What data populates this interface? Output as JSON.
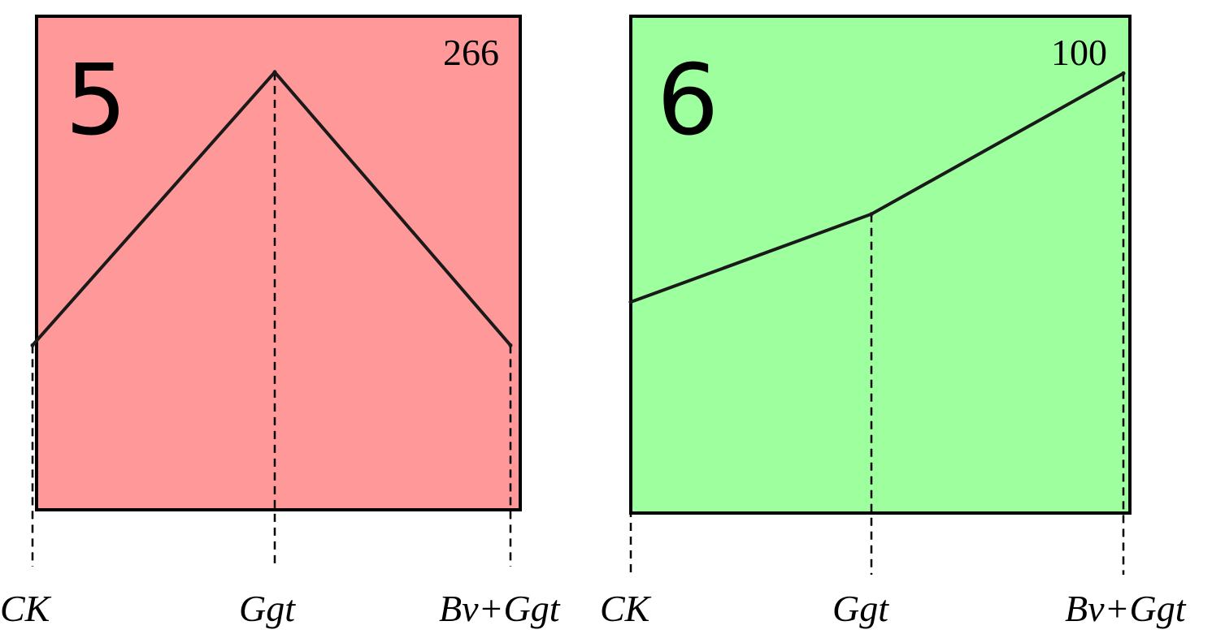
{
  "chart_data": [
    {
      "type": "line",
      "panel_label": "5",
      "max_label": "266",
      "background_color": "#ff9999",
      "line_color": "#1a1a1a",
      "categories": [
        "CK",
        "Ggt",
        "Bv+Ggt"
      ],
      "values": [
        100,
        266,
        100
      ],
      "ylim": [
        0,
        300
      ],
      "grid": false
    },
    {
      "type": "line",
      "panel_label": "6",
      "max_label": "100",
      "background_color": "#9dff9d",
      "line_color": "#1a1a1a",
      "categories": [
        "CK",
        "Ggt",
        "Bv+Ggt"
      ],
      "values": [
        48,
        68,
        100
      ],
      "ylim": [
        0,
        113
      ],
      "grid": false
    }
  ]
}
